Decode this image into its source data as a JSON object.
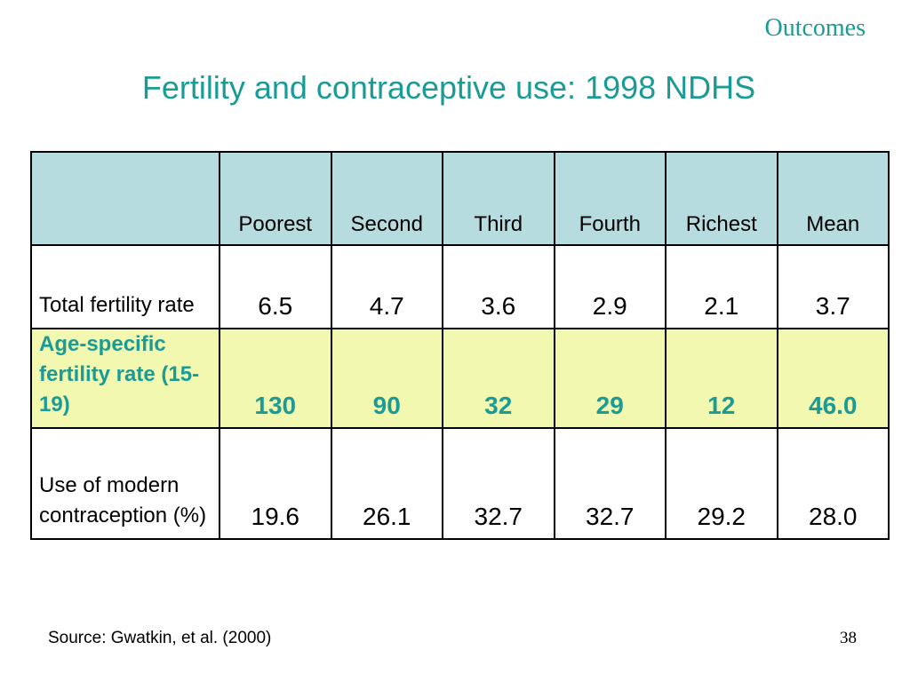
{
  "slide": {
    "section": "Outcomes",
    "title": "Fertility and contraceptive use: 1998 NDHS",
    "source": "Source: Gwatkin, et al. (2000)",
    "page_number": "38"
  },
  "colors": {
    "accent": "#1a9b96",
    "header_fill": "#b7dcdf",
    "highlight_fill": "#f2f8b0"
  },
  "table": {
    "corner": "",
    "columns": [
      "Poorest",
      "Second",
      "Third",
      "Fourth",
      "Richest",
      "Mean"
    ],
    "rows": [
      {
        "label": "Total fertility rate",
        "values": [
          "6.5",
          "4.7",
          "3.6",
          "2.9",
          "2.1",
          "3.7"
        ]
      },
      {
        "label": "Age-specific fertility rate (15-19)",
        "values": [
          "130",
          "90",
          "32",
          "29",
          "12",
          "46.0"
        ]
      },
      {
        "label": "Use of modern contraception (%)",
        "values": [
          "19.6",
          "26.1",
          "32.7",
          "32.7",
          "29.2",
          "28.0"
        ]
      }
    ]
  }
}
